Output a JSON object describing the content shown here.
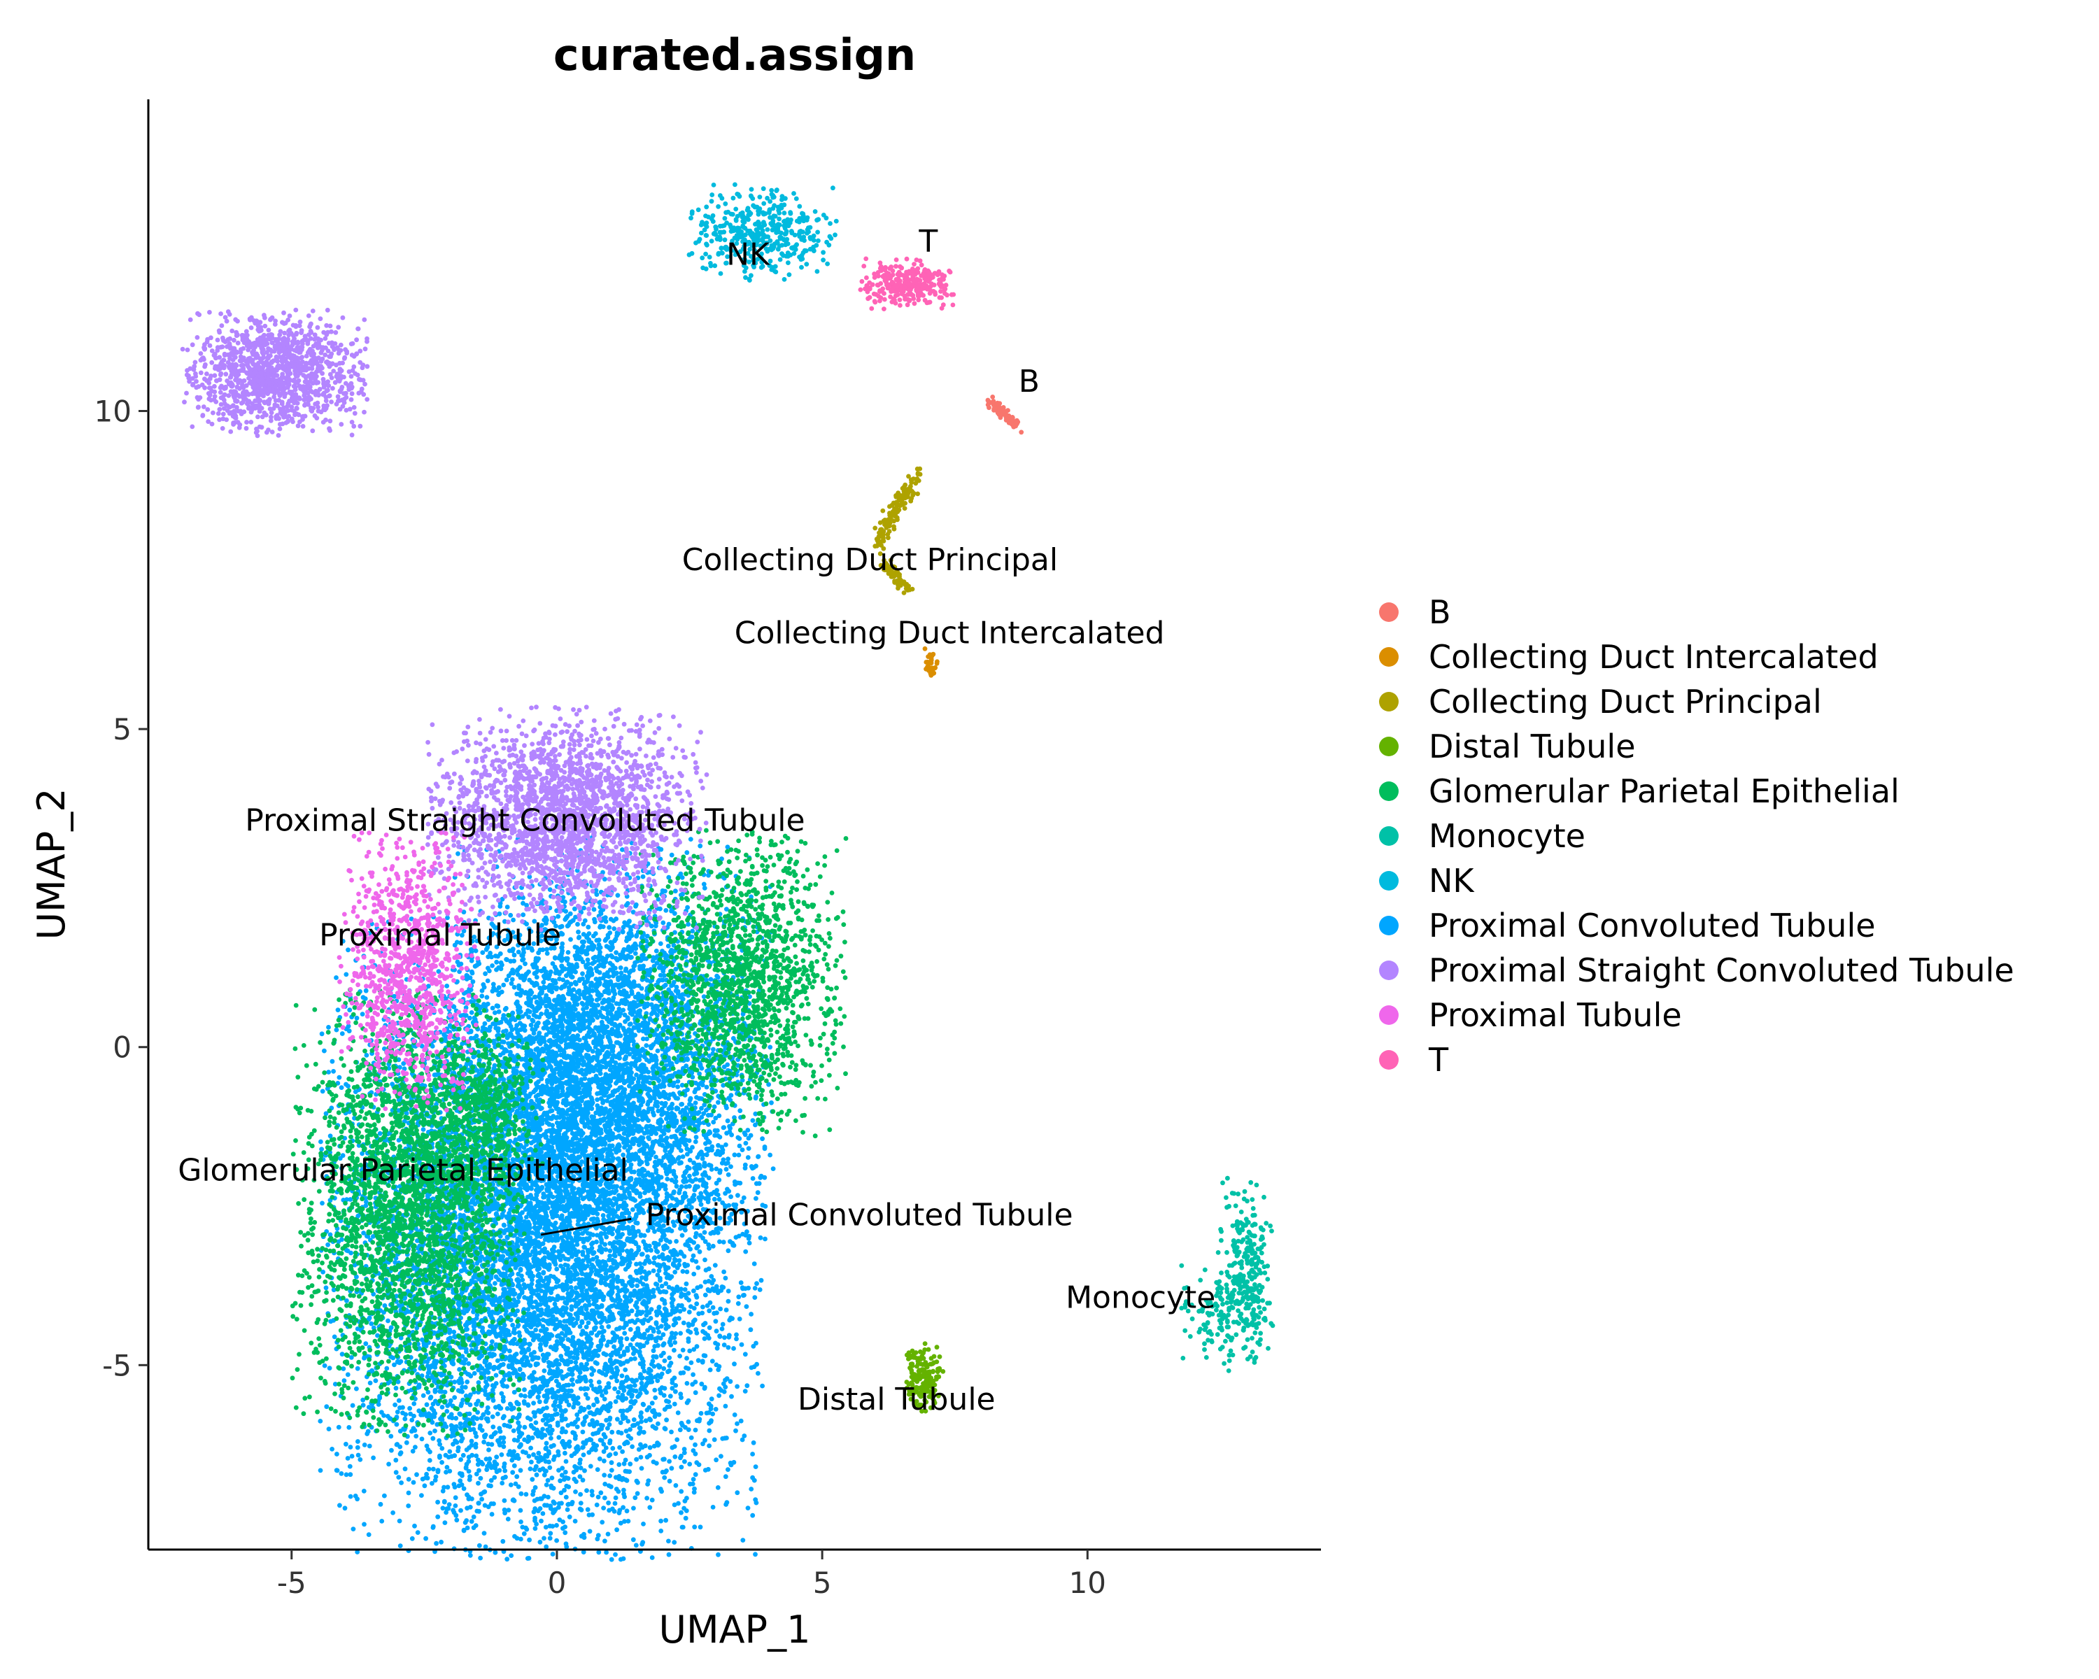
{
  "chart_data": {
    "type": "scatter",
    "title": "curated.assign",
    "xlabel": "UMAP_1",
    "ylabel": "UMAP_2",
    "xlim": [
      -7.7,
      14.4
    ],
    "ylim": [
      -7.9,
      14.9
    ],
    "x_ticks": [
      -5,
      0,
      5,
      10
    ],
    "y_ticks": [
      -5,
      0,
      5,
      10
    ],
    "x_tick_labels": [
      "-5",
      "0",
      "5",
      "10"
    ],
    "y_tick_labels": [
      "-5",
      "0",
      "5",
      "10"
    ],
    "grid": false,
    "legend_position": "right",
    "legend": [
      {
        "name": "B",
        "color": "#F8766D"
      },
      {
        "name": "Collecting Duct Intercalated",
        "color": "#DB8E00"
      },
      {
        "name": "Collecting Duct Principal",
        "color": "#AEA200"
      },
      {
        "name": "Distal Tubule",
        "color": "#64B200"
      },
      {
        "name": "Glomerular Parietal Epithelial",
        "color": "#00BD5C"
      },
      {
        "name": "Monocyte",
        "color": "#00C1A7"
      },
      {
        "name": "NK",
        "color": "#00BADE"
      },
      {
        "name": "Proximal Convoluted Tubule",
        "color": "#00A6FF"
      },
      {
        "name": "Proximal Straight Convoluted Tubule",
        "color": "#B385FF"
      },
      {
        "name": "Proximal Tubule",
        "color": "#EF67EB"
      },
      {
        "name": "T",
        "color": "#FF63B6"
      }
    ],
    "cluster_labels": [
      {
        "text": "NK",
        "x": 3.6,
        "y": 12.3
      },
      {
        "text": "T",
        "x": 7.0,
        "y": 12.5
      },
      {
        "text": "B",
        "x": 8.9,
        "y": 10.3
      },
      {
        "text": "Collecting Duct Principal",
        "x": 5.9,
        "y": 7.5
      },
      {
        "text": "Collecting Duct Intercalated",
        "x": 7.4,
        "y": 6.35
      },
      {
        "text": "Proximal Straight Convoluted Tubule",
        "x": -0.6,
        "y": 3.4
      },
      {
        "text": "Proximal Tubule",
        "x": -2.2,
        "y": 1.6
      },
      {
        "text": "Glomerular Parietal Epithelial",
        "x": -2.9,
        "y": -2.1
      },
      {
        "text": "Proximal Convoluted Tubule",
        "x": 5.7,
        "y": -2.8
      },
      {
        "text": "Monocyte",
        "x": 11.0,
        "y": -4.1
      },
      {
        "text": "Distal Tubule",
        "x": 6.4,
        "y": -5.7
      }
    ]
  }
}
